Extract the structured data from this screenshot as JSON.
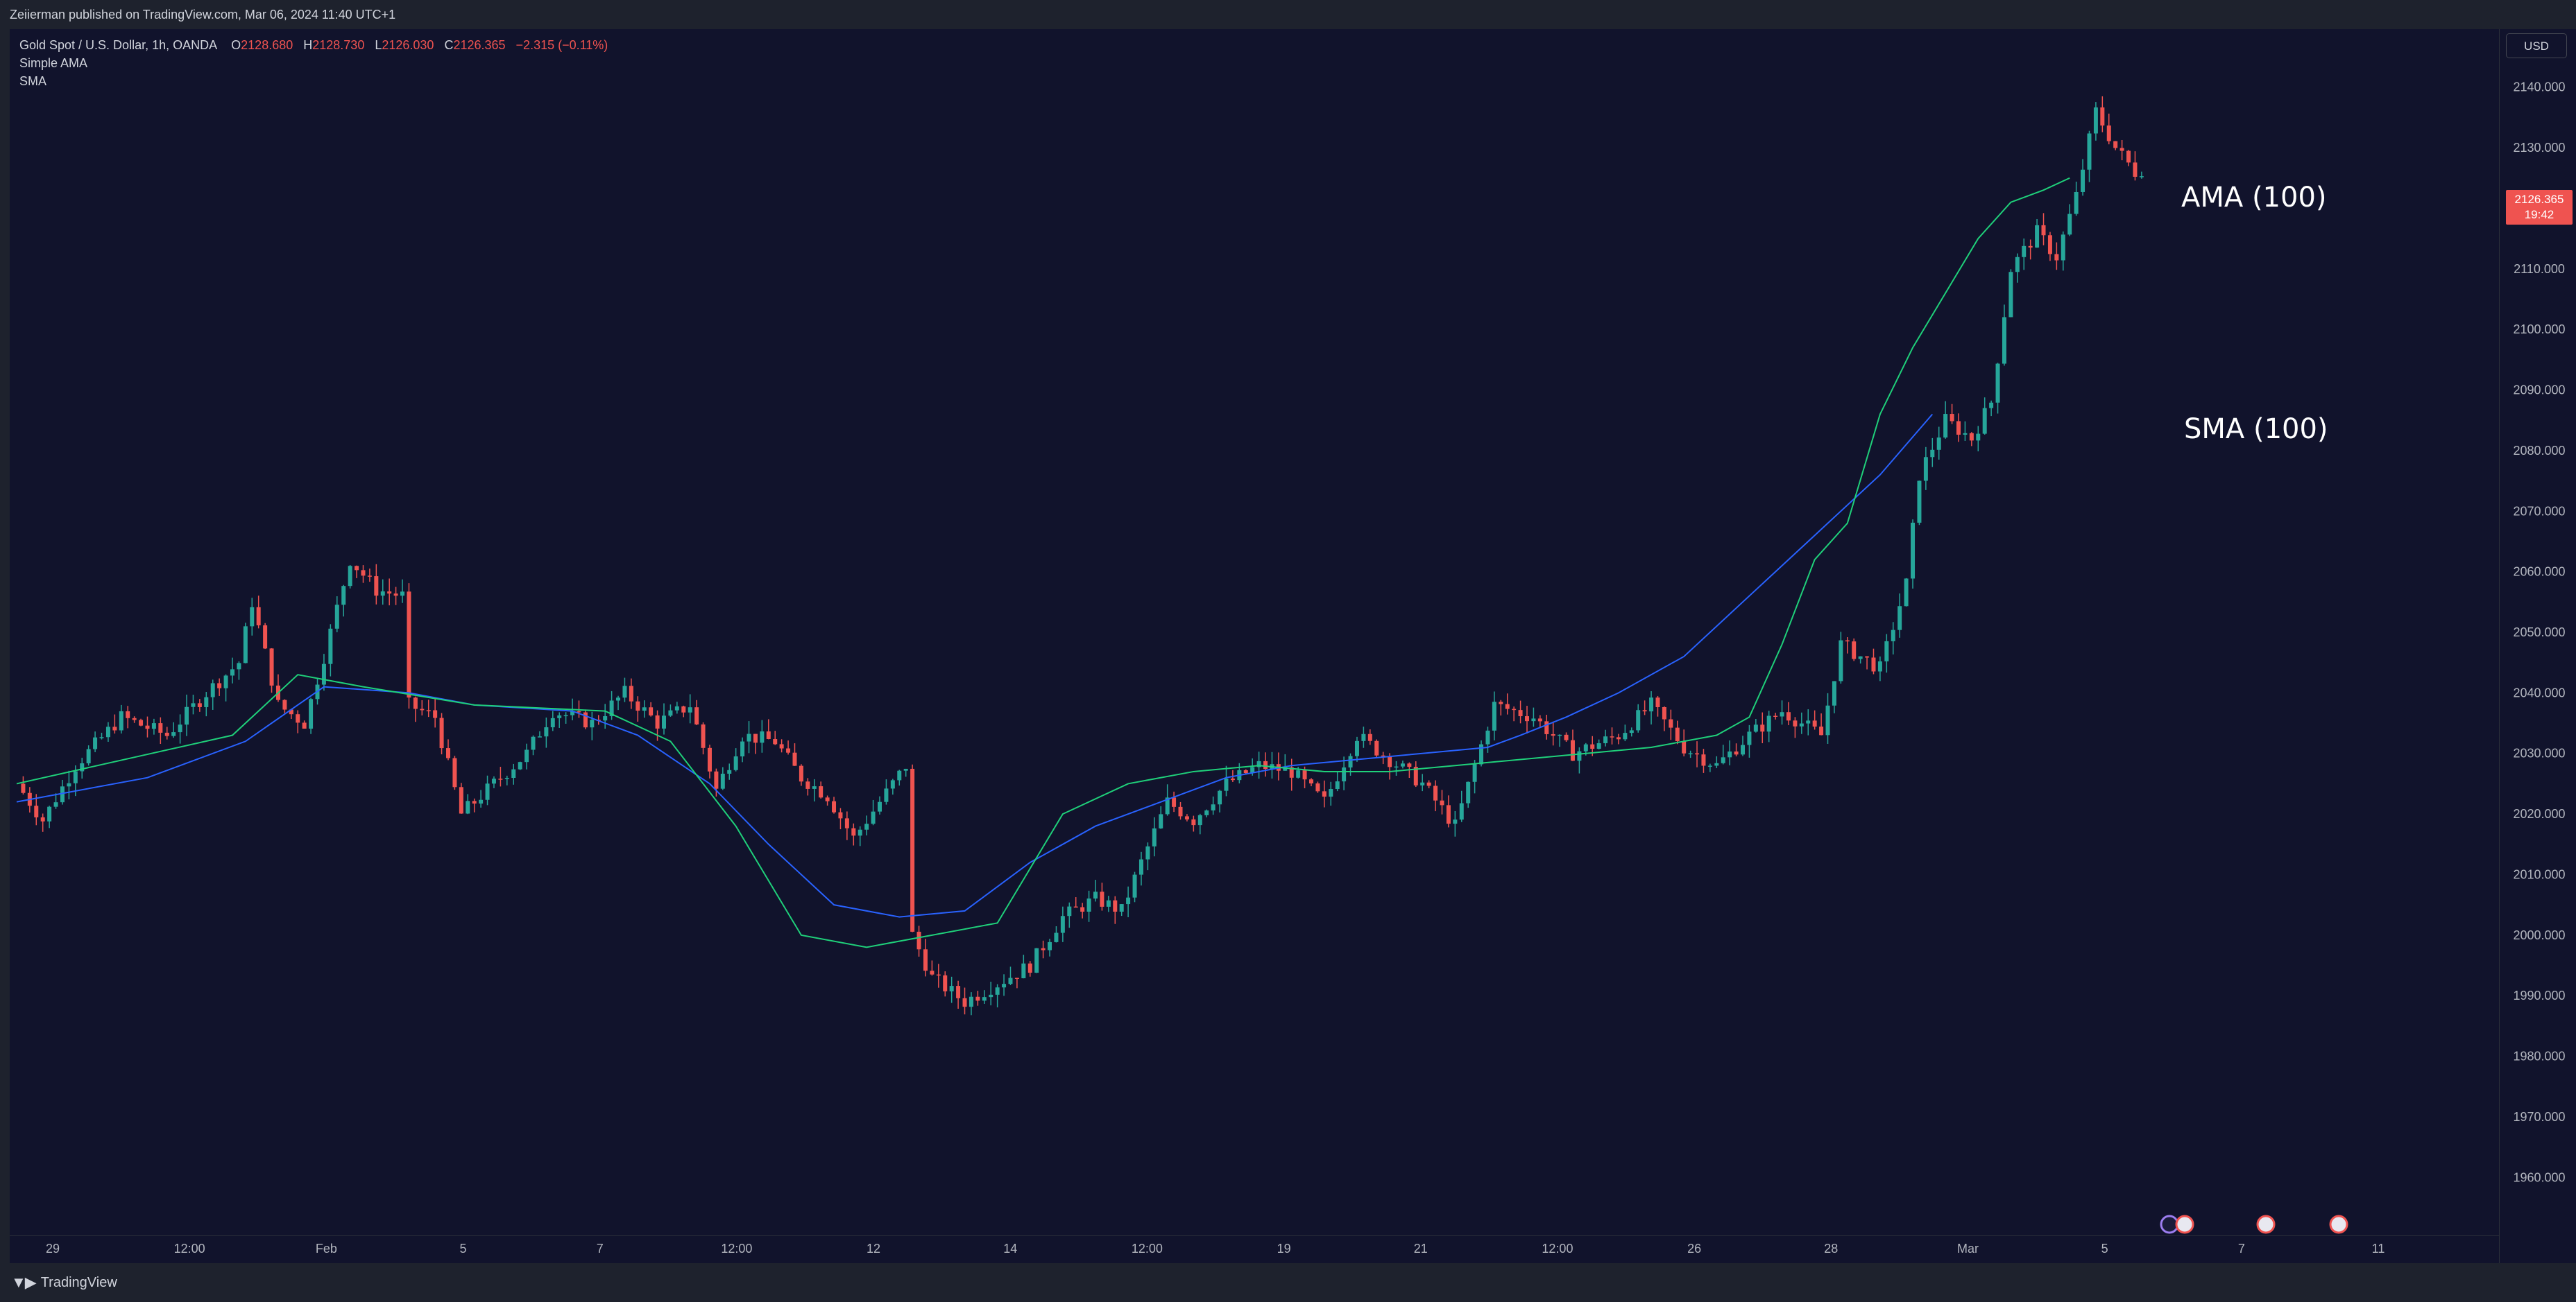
{
  "publisher_line": "Zeiierman published on TradingView.com, Mar 06, 2024 11:40 UTC+1",
  "legend": {
    "symbol": "Gold Spot / U.S. Dollar, 1h, OANDA",
    "open_label": "O",
    "open": "2128.680",
    "high_label": "H",
    "high": "2128.730",
    "low_label": "L",
    "low": "2126.030",
    "close_label": "C",
    "close": "2126.365",
    "change": "−2.315 (−0.11%)",
    "indicator_1": "Simple AMA",
    "indicator_2": "SMA"
  },
  "price_axis": {
    "currency": "USD",
    "last_price": "2126.365",
    "countdown": "19:42",
    "ticks": [
      "2140.000",
      "2130.000",
      "2120.000",
      "2110.000",
      "2100.000",
      "2090.000",
      "2080.000",
      "2070.000",
      "2060.000",
      "2050.000",
      "2040.000",
      "2030.000",
      "2020.000",
      "2010.000",
      "2000.000",
      "1990.000",
      "1980.000",
      "1970.000",
      "1960.000"
    ]
  },
  "time_axis": {
    "ticks": [
      "29",
      "12:00",
      "Feb",
      "5",
      "7",
      "12:00",
      "12",
      "14",
      "12:00",
      "19",
      "21",
      "12:00",
      "26",
      "28",
      "Mar",
      "5",
      "7",
      "11"
    ]
  },
  "annotations": {
    "ama_label": "AMA (100)",
    "sma_label": "SMA (100)"
  },
  "colors": {
    "background": "#11132c",
    "up_candle": "#26a69a",
    "down_candle": "#ef5350",
    "ama_line": "#1fd07a",
    "sma_line": "#2962ff",
    "ama_line_falling": "#ef5350"
  },
  "footer": {
    "brand": "TradingView"
  },
  "chart_data": {
    "type": "line",
    "title": "Gold Spot / U.S. Dollar, 1h, OANDA",
    "ylim": [
      1955,
      2145
    ],
    "x": [
      "Jan 29",
      "Jan 29 12:00",
      "Feb 1",
      "Feb 5",
      "Feb 7",
      "Feb 7 12:00",
      "Feb 12",
      "Feb 14",
      "Feb 14 12:00",
      "Feb 19",
      "Feb 21",
      "Feb 21 12:00",
      "Feb 26",
      "Feb 28",
      "Mar 1",
      "Mar 5",
      "Mar 7",
      "Mar 11"
    ],
    "price_path": [
      [
        0,
        2025
      ],
      [
        0.4,
        2019
      ],
      [
        0.9,
        2028
      ],
      [
        1.6,
        2036
      ],
      [
        2.3,
        2033
      ],
      [
        2.9,
        2040
      ],
      [
        3.4,
        2045
      ],
      [
        3.6,
        2055
      ],
      [
        4.0,
        2038
      ],
      [
        4.4,
        2035
      ],
      [
        4.7,
        2046
      ],
      [
        5.1,
        2062
      ],
      [
        5.5,
        2057
      ],
      [
        5.9,
        2056
      ],
      [
        6.0,
        2038
      ],
      [
        6.4,
        2036
      ],
      [
        6.8,
        2020
      ],
      [
        7.3,
        2025
      ],
      [
        7.8,
        2030
      ],
      [
        8.2,
        2037
      ],
      [
        8.8,
        2035
      ],
      [
        9.3,
        2040
      ],
      [
        9.8,
        2035
      ],
      [
        10.3,
        2038
      ],
      [
        10.7,
        2024
      ],
      [
        11.1,
        2033
      ],
      [
        11.6,
        2032
      ],
      [
        12.0,
        2026
      ],
      [
        12.4,
        2023
      ],
      [
        12.8,
        2016
      ],
      [
        13.2,
        2022
      ],
      [
        13.6,
        2028
      ],
      [
        13.7,
        2000
      ],
      [
        14.0,
        1993
      ],
      [
        14.5,
        1989
      ],
      [
        15.0,
        1992
      ],
      [
        15.5,
        1995
      ],
      [
        16.0,
        2003
      ],
      [
        16.5,
        2006
      ],
      [
        16.9,
        2004
      ],
      [
        17.2,
        2012
      ],
      [
        17.6,
        2022
      ],
      [
        18.0,
        2019
      ],
      [
        18.5,
        2025
      ],
      [
        19.0,
        2028
      ],
      [
        19.5,
        2027
      ],
      [
        20.0,
        2022
      ],
      [
        20.5,
        2033
      ],
      [
        21.0,
        2029
      ],
      [
        21.5,
        2025
      ],
      [
        22.0,
        2018
      ],
      [
        22.6,
        2038
      ],
      [
        23.2,
        2036
      ],
      [
        23.8,
        2030
      ],
      [
        24.5,
        2033
      ],
      [
        25.0,
        2038
      ],
      [
        25.5,
        2031
      ],
      [
        26.0,
        2028
      ],
      [
        26.5,
        2033
      ],
      [
        27.0,
        2037
      ],
      [
        27.6,
        2033
      ],
      [
        27.9,
        2048
      ],
      [
        28.5,
        2044
      ],
      [
        28.9,
        2058
      ],
      [
        29.1,
        2076
      ],
      [
        29.5,
        2085
      ],
      [
        29.9,
        2082
      ],
      [
        30.2,
        2088
      ],
      [
        30.5,
        2110
      ],
      [
        30.9,
        2116
      ],
      [
        31.2,
        2112
      ],
      [
        31.5,
        2122
      ],
      [
        31.8,
        2136
      ],
      [
        32.1,
        2130
      ],
      [
        32.4,
        2126
      ],
      [
        32.6,
        2127
      ]
    ],
    "series": [
      {
        "name": "AMA (100)",
        "points": [
          [
            0,
            2025
          ],
          [
            3.3,
            2033
          ],
          [
            4.3,
            2043
          ],
          [
            5.3,
            2041
          ],
          [
            7.0,
            2038
          ],
          [
            9.0,
            2037
          ],
          [
            10.0,
            2032
          ],
          [
            11.0,
            2018
          ],
          [
            12.0,
            2000
          ],
          [
            13.0,
            1998
          ],
          [
            14.0,
            2000
          ],
          [
            15.0,
            2002
          ],
          [
            16.0,
            2020
          ],
          [
            17.0,
            2025
          ],
          [
            18.0,
            2027
          ],
          [
            19.0,
            2028
          ],
          [
            20.0,
            2027
          ],
          [
            21.0,
            2027
          ],
          [
            22.0,
            2028
          ],
          [
            23.0,
            2029
          ],
          [
            24.0,
            2030
          ],
          [
            25.0,
            2031
          ],
          [
            26.0,
            2033
          ],
          [
            26.5,
            2036
          ],
          [
            27.0,
            2048
          ],
          [
            27.5,
            2062
          ],
          [
            28.0,
            2068
          ],
          [
            28.5,
            2086
          ],
          [
            29.0,
            2097
          ],
          [
            29.5,
            2106
          ],
          [
            30.0,
            2115
          ],
          [
            30.5,
            2121
          ],
          [
            31.0,
            2123
          ],
          [
            31.4,
            2125
          ]
        ]
      },
      {
        "name": "SMA (100)",
        "points": [
          [
            0,
            2022
          ],
          [
            2.0,
            2026
          ],
          [
            3.5,
            2032
          ],
          [
            4.7,
            2041
          ],
          [
            6.0,
            2040
          ],
          [
            7.0,
            2038
          ],
          [
            8.5,
            2037
          ],
          [
            9.5,
            2033
          ],
          [
            10.6,
            2025
          ],
          [
            11.5,
            2015
          ],
          [
            12.5,
            2005
          ],
          [
            13.5,
            2003
          ],
          [
            14.5,
            2004
          ],
          [
            15.5,
            2012
          ],
          [
            16.5,
            2018
          ],
          [
            17.5,
            2022
          ],
          [
            18.5,
            2026
          ],
          [
            19.5,
            2028
          ],
          [
            20.5,
            2029
          ],
          [
            21.5,
            2030
          ],
          [
            22.5,
            2031
          ],
          [
            23.0,
            2033
          ],
          [
            23.7,
            2036
          ],
          [
            24.5,
            2040
          ],
          [
            25.5,
            2046
          ],
          [
            26.5,
            2056
          ],
          [
            27.5,
            2066
          ],
          [
            28.5,
            2076
          ],
          [
            29.3,
            2086
          ]
        ]
      }
    ]
  }
}
